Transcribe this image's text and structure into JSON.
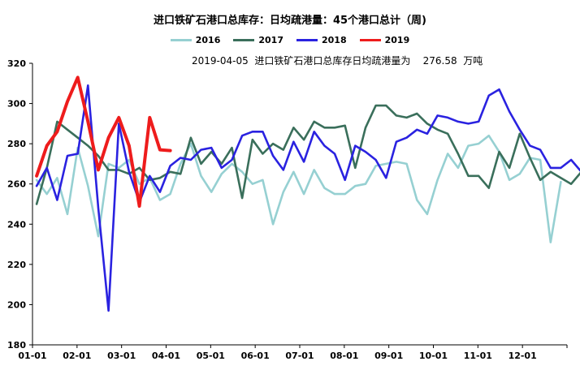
{
  "chart_data": {
    "type": "line",
    "title": "进口铁矿石港口总库存：日均疏港量：45个港口总计（周)",
    "xlabel": "",
    "ylabel": "",
    "x_ticks": [
      "01-01",
      "02-01",
      "03-01",
      "04-01",
      "05-01",
      "06-01",
      "07-01",
      "08-01",
      "09-01",
      "10-01",
      "11-01",
      "12-01"
    ],
    "y_ticks": [
      180,
      200,
      220,
      240,
      260,
      280,
      300,
      320
    ],
    "ylim": [
      180,
      320
    ],
    "grid": false,
    "legend_position": "top",
    "annotation": "2019-04-05  进口铁矿石港口总库存日均疏港量为    276.58  万吨",
    "series": [
      {
        "name": "2016",
        "color": "#96D0D2",
        "values": [
          262,
          255,
          263,
          245,
          278,
          259,
          234,
          270,
          268,
          272,
          260,
          263,
          252,
          255,
          270,
          280,
          264,
          256,
          265,
          270,
          266,
          260,
          262,
          240,
          256,
          266,
          255,
          267,
          258,
          255,
          255,
          259,
          260,
          269,
          270,
          271,
          270,
          252,
          245,
          262,
          275,
          268,
          279,
          280,
          284,
          276,
          262,
          265,
          273,
          272,
          231,
          261
        ]
      },
      {
        "name": "2017",
        "color": "#3A6F5B",
        "values": [
          250,
          268,
          291,
          287,
          283,
          279,
          274,
          267,
          267,
          265,
          268,
          262,
          263,
          266,
          265,
          283,
          270,
          276,
          270,
          278,
          253,
          282,
          275,
          280,
          277,
          288,
          282,
          291,
          288,
          288,
          289,
          268,
          288,
          299,
          299,
          294,
          293,
          295,
          290,
          287,
          285,
          275,
          264,
          264,
          258,
          276,
          268,
          285,
          273,
          262,
          266,
          263,
          260,
          266
        ]
      },
      {
        "name": "2018",
        "color": "#2A22E0",
        "values": [
          259,
          268,
          252,
          274,
          275,
          309,
          248,
          197,
          290,
          266,
          251,
          264,
          256,
          269,
          273,
          272,
          277,
          278,
          268,
          272,
          284,
          286,
          286,
          274,
          267,
          281,
          271,
          286,
          279,
          275,
          262,
          279,
          276,
          272,
          263,
          281,
          283,
          287,
          285,
          294,
          293,
          291,
          290,
          291,
          304,
          307,
          296,
          287,
          279,
          277,
          268,
          268,
          272,
          266
        ]
      },
      {
        "name": "2019",
        "color": "#EE1C1C",
        "values": [
          264,
          279,
          286,
          301,
          313,
          291,
          267,
          283,
          293,
          279,
          249,
          293,
          277,
          276.58
        ]
      }
    ]
  }
}
